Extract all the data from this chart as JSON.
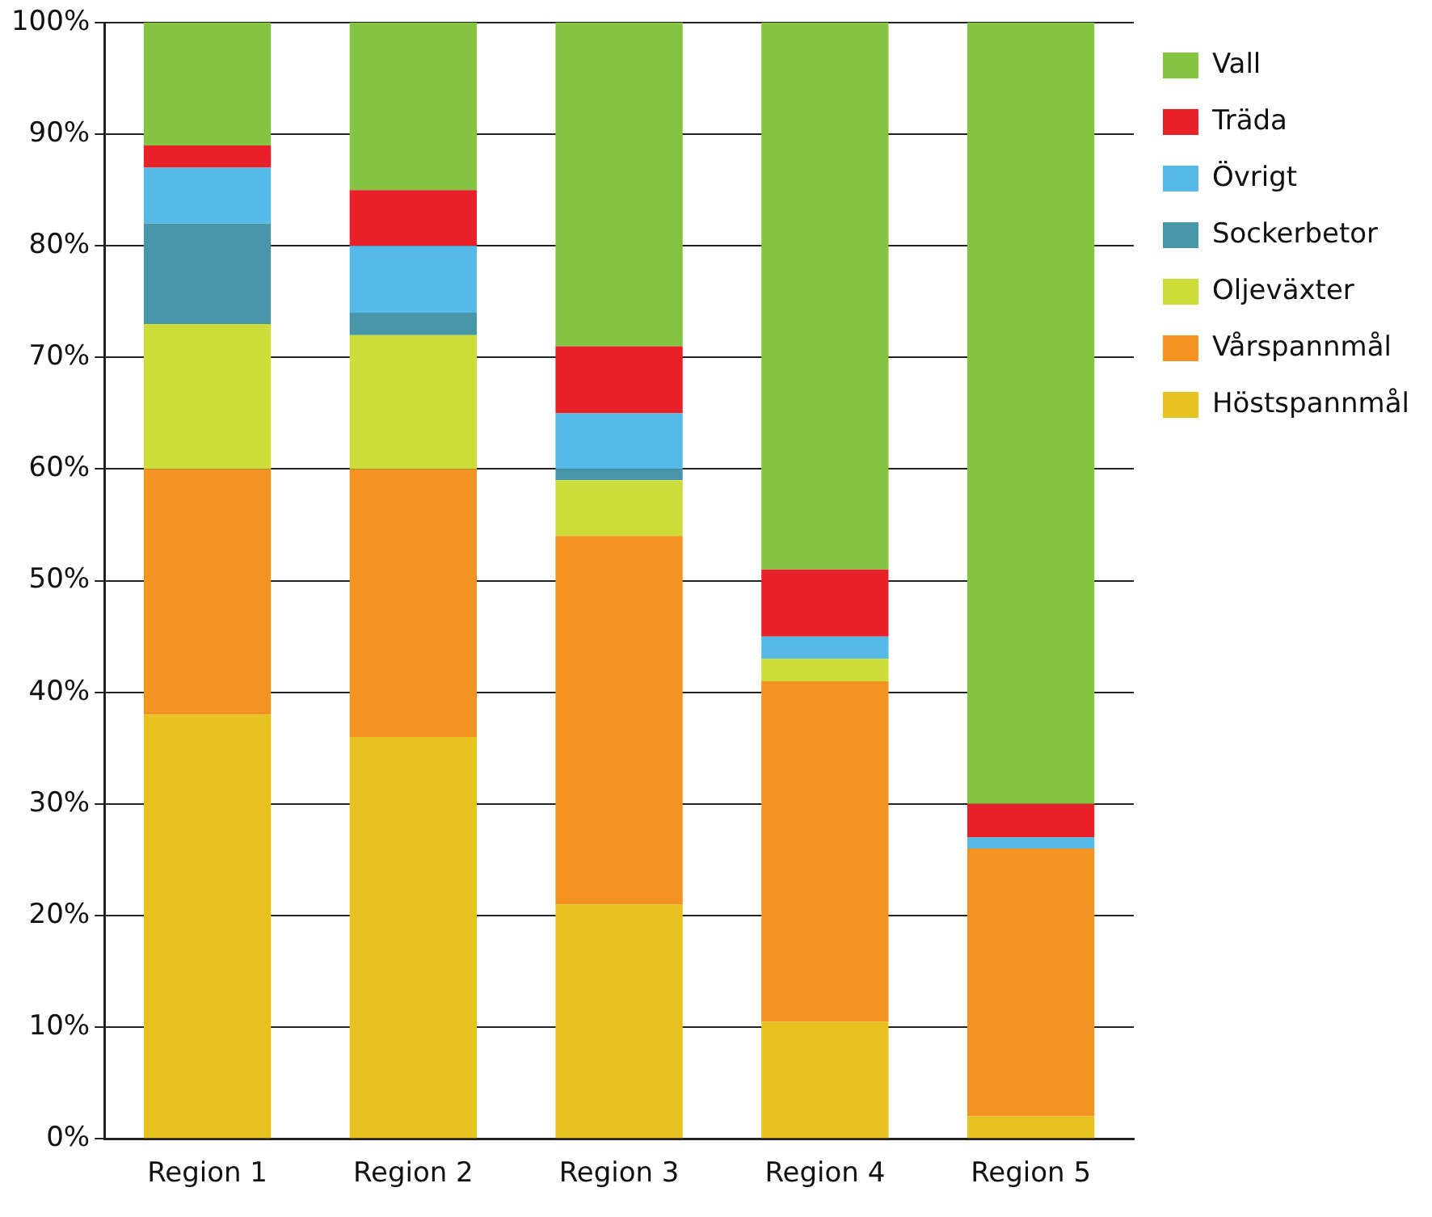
{
  "chart_data": {
    "type": "bar",
    "stacked": true,
    "categories": [
      "Region 1",
      "Region 2",
      "Region 3",
      "Region 4",
      "Region 5"
    ],
    "series": [
      {
        "name": "Höstspannmål",
        "color": "#e8c21f",
        "values": [
          38,
          36,
          21,
          10.5,
          2
        ]
      },
      {
        "name": "Vårspannmål",
        "color": "#f39322",
        "values": [
          22,
          24,
          33,
          30.5,
          24
        ]
      },
      {
        "name": "Oljeväxter",
        "color": "#cddc38",
        "values": [
          13,
          12,
          5,
          2,
          0
        ]
      },
      {
        "name": "Sockerbetor",
        "color": "#4797a8",
        "values": [
          9,
          2,
          1,
          0,
          0
        ]
      },
      {
        "name": "Övrigt",
        "color": "#55bae8",
        "values": [
          5,
          6,
          5,
          2,
          1
        ]
      },
      {
        "name": "Träda",
        "color": "#e8202a",
        "values": [
          2,
          5,
          6,
          6,
          3
        ]
      },
      {
        "name": "Vall",
        "color": "#84c441",
        "values": [
          11,
          15,
          29,
          49,
          70
        ]
      }
    ],
    "ylim": [
      0,
      100
    ],
    "yticks": [
      {
        "value": 0,
        "label": "0%"
      },
      {
        "value": 10,
        "label": "10%"
      },
      {
        "value": 20,
        "label": "20%"
      },
      {
        "value": 30,
        "label": "30%"
      },
      {
        "value": 40,
        "label": "40%"
      },
      {
        "value": 50,
        "label": "50%"
      },
      {
        "value": 60,
        "label": "60%"
      },
      {
        "value": 70,
        "label": "70%"
      },
      {
        "value": 80,
        "label": "80%"
      },
      {
        "value": 90,
        "label": "90%"
      },
      {
        "value": 100,
        "label": "100%"
      }
    ],
    "grid": "y",
    "legend": "right"
  }
}
